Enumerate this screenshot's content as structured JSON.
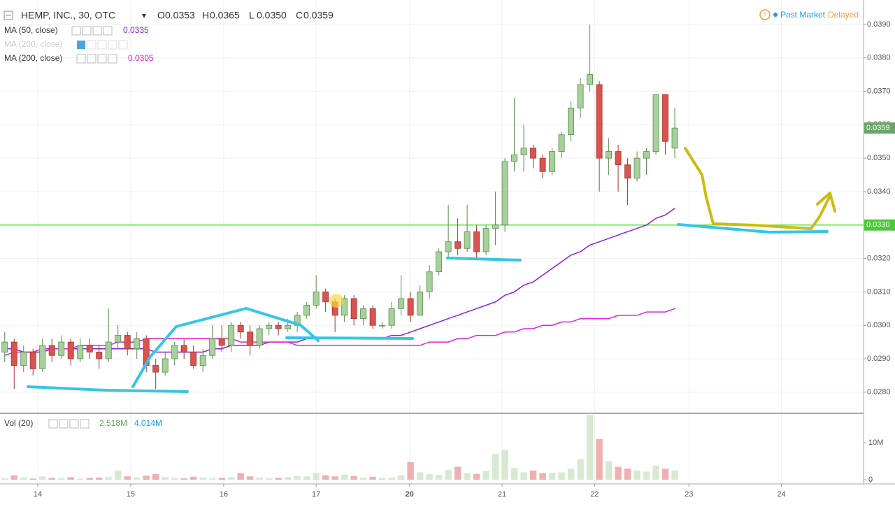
{
  "chart_data": {
    "type": "candlestick",
    "title": "HEMP, INC., 30, OTC",
    "header_ohlc": [
      {
        "key": "O",
        "value": "0.0353"
      },
      {
        "key": "H",
        "value": "0.0365"
      },
      {
        "key": "L",
        "value": "0.0350"
      },
      {
        "key": "C",
        "value": "0.0359"
      }
    ],
    "status": {
      "session": "Post Market",
      "feed": "Delayed"
    },
    "categories": [
      null,
      null,
      null,
      null,
      null,
      null,
      null,
      null,
      null,
      null,
      null,
      null,
      null,
      null,
      null,
      null,
      null,
      null,
      null,
      null,
      null,
      null,
      null,
      null,
      null,
      null,
      null,
      null,
      null,
      null,
      null,
      null,
      null,
      null,
      null,
      null,
      null,
      null,
      null,
      null,
      null,
      null,
      null,
      null,
      null,
      null,
      null,
      null,
      null,
      null,
      null,
      null,
      null,
      null,
      null,
      null,
      null,
      null,
      null,
      null,
      null,
      null,
      null,
      null,
      null,
      null,
      null,
      null,
      null,
      null,
      null,
      null
    ],
    "open": [
      0.0292,
      0.0295,
      0.0288,
      0.0292,
      0.0287,
      0.0294,
      0.0291,
      0.0295,
      0.029,
      0.0294,
      0.0292,
      0.029,
      0.0295,
      0.0297,
      0.0293,
      0.0296,
      0.0288,
      0.0286,
      0.029,
      0.0294,
      0.0292,
      0.0288,
      0.0291,
      0.0296,
      0.0294,
      0.03,
      0.0298,
      0.0294,
      0.0299,
      0.03,
      0.0299,
      0.03,
      0.0303,
      0.0306,
      0.031,
      0.0307,
      0.0303,
      0.0308,
      0.0302,
      0.0305,
      0.03,
      0.03,
      0.0305,
      0.0308,
      0.0303,
      0.031,
      0.0316,
      0.0322,
      0.0325,
      0.0323,
      0.0328,
      0.0322,
      0.0329,
      0.033,
      0.0349,
      0.0351,
      0.0353,
      0.035,
      0.0346,
      0.0352,
      0.0357,
      0.0365,
      0.0372,
      0.0372,
      0.035,
      0.0352,
      0.0348,
      0.0344,
      0.035,
      0.0352,
      0.0369,
      0.0353
    ],
    "high": [
      0.0298,
      0.0296,
      0.0294,
      0.0293,
      0.0296,
      0.0296,
      0.0297,
      0.0296,
      0.0296,
      0.0296,
      0.0294,
      0.0305,
      0.03,
      0.0298,
      0.0298,
      0.0297,
      0.029,
      0.0292,
      0.0295,
      0.0296,
      0.0294,
      0.0293,
      0.03,
      0.03,
      0.0301,
      0.0301,
      0.03,
      0.03,
      0.0301,
      0.0301,
      0.0302,
      0.0304,
      0.0307,
      0.0315,
      0.0311,
      0.0308,
      0.0309,
      0.0309,
      0.0306,
      0.0306,
      0.0301,
      0.0307,
      0.0315,
      0.031,
      0.0312,
      0.0318,
      0.0323,
      0.0336,
      0.0332,
      0.0336,
      0.033,
      0.033,
      0.034,
      0.035,
      0.0368,
      0.036,
      0.0354,
      0.0351,
      0.0353,
      0.0358,
      0.0367,
      0.0374,
      0.039,
      0.0373,
      0.0356,
      0.0354,
      0.035,
      0.0352,
      0.0353,
      0.0369,
      0.0369,
      0.0365
    ],
    "low": [
      0.0289,
      0.0281,
      0.0286,
      0.0285,
      0.0286,
      0.0289,
      0.029,
      0.0288,
      0.0289,
      0.029,
      0.0287,
      0.0289,
      0.0293,
      0.0291,
      0.029,
      0.0286,
      0.0281,
      0.0285,
      0.0288,
      0.029,
      0.0287,
      0.0286,
      0.029,
      0.0292,
      0.0292,
      0.0296,
      0.0291,
      0.0293,
      0.0297,
      0.0297,
      0.0298,
      0.0298,
      0.0302,
      0.0305,
      0.0304,
      0.0298,
      0.0301,
      0.03,
      0.03,
      0.0299,
      0.0299,
      0.0299,
      0.0303,
      0.0301,
      0.0303,
      0.0308,
      0.0315,
      0.032,
      0.0321,
      0.0322,
      0.032,
      0.0321,
      0.0324,
      0.0328,
      0.0346,
      0.0346,
      0.0347,
      0.0344,
      0.0345,
      0.035,
      0.0355,
      0.0362,
      0.037,
      0.034,
      0.0345,
      0.034,
      0.0336,
      0.0343,
      0.0345,
      0.0351,
      0.0351,
      0.035
    ],
    "close": [
      0.0295,
      0.0288,
      0.0292,
      0.0287,
      0.0294,
      0.0291,
      0.0295,
      0.029,
      0.0294,
      0.0292,
      0.029,
      0.0295,
      0.0297,
      0.0293,
      0.0296,
      0.0288,
      0.0286,
      0.029,
      0.0294,
      0.0292,
      0.0288,
      0.0291,
      0.0296,
      0.0294,
      0.03,
      0.0298,
      0.0294,
      0.0299,
      0.03,
      0.0299,
      0.03,
      0.0303,
      0.0306,
      0.031,
      0.0307,
      0.0303,
      0.0308,
      0.0302,
      0.0305,
      0.03,
      0.03,
      0.0305,
      0.0308,
      0.0303,
      0.031,
      0.0316,
      0.0322,
      0.0325,
      0.0323,
      0.0328,
      0.0322,
      0.0329,
      0.033,
      0.0349,
      0.0351,
      0.0353,
      0.035,
      0.0346,
      0.0352,
      0.0357,
      0.0365,
      0.0372,
      0.0375,
      0.035,
      0.0352,
      0.0348,
      0.0344,
      0.035,
      0.0352,
      0.0369,
      0.0355,
      0.0359
    ],
    "up_color": "#a7d19a",
    "down_color": "#d9534f",
    "xlim": [
      -0.5,
      91
    ],
    "xticks": [
      {
        "value": 3.5,
        "label": "14"
      },
      {
        "value": 13.35,
        "label": "15"
      },
      {
        "value": 23.2,
        "label": "16"
      },
      {
        "value": 33,
        "label": "17"
      },
      {
        "value": 42.9,
        "label": "20"
      },
      {
        "value": 52.7,
        "label": "21"
      },
      {
        "value": 62.5,
        "label": "22"
      },
      {
        "value": 72.5,
        "label": "23"
      },
      {
        "value": 82.3,
        "label": "24"
      }
    ],
    "ylim": [
      0.02739,
      0.03973
    ],
    "yticks": [
      {
        "value": 0.028,
        "label": "0.0280"
      },
      {
        "value": 0.029,
        "label": "0.0290"
      },
      {
        "value": 0.03,
        "label": "0.0300"
      },
      {
        "value": 0.031,
        "label": "0.0310"
      },
      {
        "value": 0.032,
        "label": "0.0320"
      },
      {
        "value": 0.033,
        "label": "0.0330"
      },
      {
        "value": 0.034,
        "label": "0.0340"
      },
      {
        "value": 0.035,
        "label": "0.0350"
      },
      {
        "value": 0.036,
        "label": "0.0360"
      },
      {
        "value": 0.037,
        "label": "0.0370"
      },
      {
        "value": 0.038,
        "label": "0.0380"
      },
      {
        "value": 0.039,
        "label": "0.0390"
      }
    ],
    "grid": true,
    "last_price": 0.0359,
    "hline": {
      "value": 0.033,
      "label": "0.0330",
      "color": "#66e04a"
    },
    "series": [
      {
        "name": "MA (50, close)",
        "color": "#8e1ee0",
        "last": 0.0335,
        "values": [
          0.0293,
          0.0293,
          0.0292,
          0.0292,
          0.0292,
          0.0293,
          0.0293,
          0.0293,
          0.0293,
          0.0293,
          0.0293,
          0.0293,
          0.0293,
          0.0293,
          0.0293,
          0.0293,
          0.0292,
          0.0292,
          0.0292,
          0.0292,
          0.0292,
          0.0292,
          0.0293,
          0.0293,
          0.0294,
          0.0294,
          0.0294,
          0.0294,
          0.0295,
          0.0295,
          0.0295,
          0.0295,
          0.0296,
          0.0296,
          0.0296,
          0.0296,
          0.0296,
          0.0296,
          0.0296,
          0.0296,
          0.0296,
          0.0297,
          0.0297,
          0.0298,
          0.0299,
          0.03,
          0.0301,
          0.0302,
          0.0303,
          0.0304,
          0.0305,
          0.0306,
          0.0307,
          0.0309,
          0.031,
          0.0312,
          0.0313,
          0.0315,
          0.0317,
          0.0319,
          0.0321,
          0.0322,
          0.0324,
          0.0325,
          0.0326,
          0.0327,
          0.0328,
          0.0329,
          0.033,
          0.0332,
          0.0333,
          0.0335
        ]
      },
      {
        "name": "MA (200, close)",
        "color": "#e020d8",
        "last": 0.0305,
        "values": [
          0.0291,
          0.0292,
          0.0292,
          0.0292,
          0.0293,
          0.0293,
          0.0293,
          0.0293,
          0.0294,
          0.0294,
          0.0294,
          0.0294,
          0.0295,
          0.0295,
          0.0295,
          0.0296,
          0.0296,
          0.0296,
          0.0296,
          0.0296,
          0.0296,
          0.0296,
          0.0296,
          0.0296,
          0.0296,
          0.0295,
          0.0295,
          0.0295,
          0.0295,
          0.0295,
          0.0295,
          0.0294,
          0.0294,
          0.0294,
          0.0294,
          0.0294,
          0.0294,
          0.0294,
          0.0294,
          0.0294,
          0.0294,
          0.0294,
          0.0294,
          0.0294,
          0.0294,
          0.0295,
          0.0295,
          0.0295,
          0.0296,
          0.0296,
          0.0297,
          0.0297,
          0.0297,
          0.0298,
          0.0298,
          0.0299,
          0.0299,
          0.03,
          0.03,
          0.0301,
          0.0301,
          0.0302,
          0.0302,
          0.0302,
          0.0302,
          0.0303,
          0.0303,
          0.0303,
          0.0304,
          0.0304,
          0.0304,
          0.0305
        ]
      }
    ],
    "hidden_indicator": {
      "name": "MA (200, close)"
    },
    "volume": {
      "name": "Vol (20)",
      "legend": [
        {
          "value": 2518000,
          "label": "2.518M",
          "color": "#4caf50"
        },
        {
          "value": 4014000,
          "label": "4.014M",
          "color": "#2196f3"
        }
      ],
      "ylim": [
        -1132000,
        17736000
      ],
      "yticks": [
        0,
        {
          "value": 10000000,
          "label": "10M"
        }
      ],
      "values": [
        400000,
        1200000,
        600000,
        300000,
        900000,
        500000,
        400000,
        700000,
        300000,
        500000,
        600000,
        800000,
        2500000,
        900000,
        600000,
        1100000,
        1500000,
        700000,
        500000,
        400000,
        800000,
        600000,
        400000,
        500000,
        700000,
        1800000,
        900000,
        600000,
        400000,
        500000,
        700000,
        1000000,
        900000,
        1800000,
        1200000,
        900000,
        1400000,
        1000000,
        600000,
        800000,
        500000,
        600000,
        1200000,
        4800000,
        2000000,
        1500000,
        1300000,
        2600000,
        3500000,
        1800000,
        1600000,
        2400000,
        7000000,
        8000000,
        3200000,
        2000000,
        2500000,
        1800000,
        1900000,
        2000000,
        3000000,
        5500000,
        17500000,
        11000000,
        5000000,
        3500000,
        3000000,
        2500000,
        2200000,
        3800000,
        3000000,
        2518000
      ]
    }
  }
}
